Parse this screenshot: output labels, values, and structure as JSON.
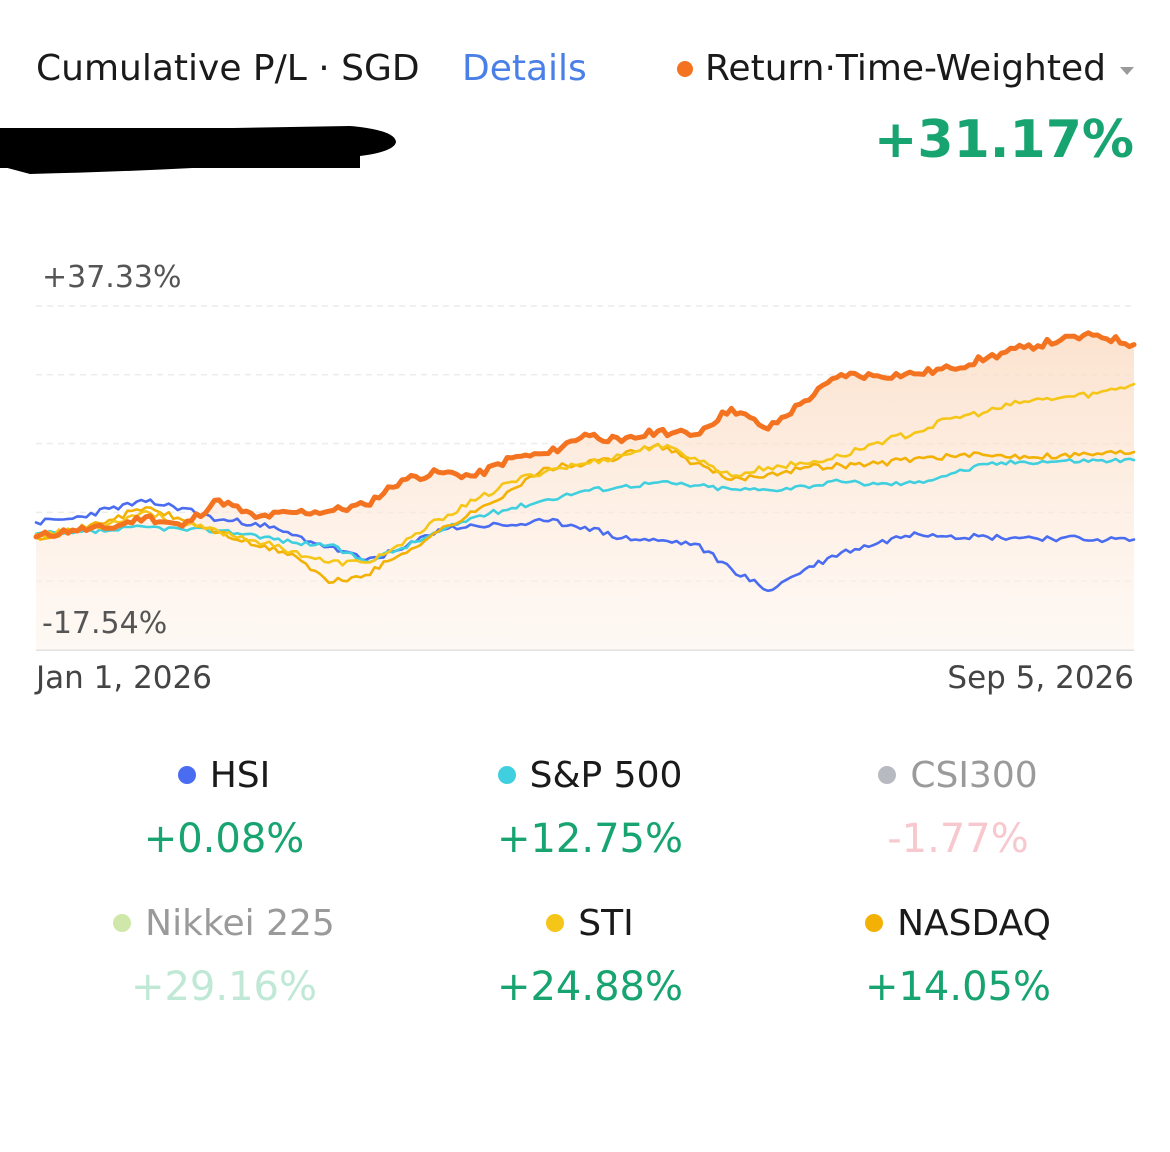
{
  "header": {
    "title": "Cumulative P/L · SGD",
    "details_label": "Details",
    "metric_label": "Return·Time-Weighted",
    "metric_color": "#f47320",
    "total_return": "+31.17%"
  },
  "chart_data": {
    "type": "line",
    "x_start_label": "Jan 1, 2026",
    "x_end_label": "Sep 5, 2026",
    "y_max_label": "+37.33%",
    "y_min_label": "-17.54%",
    "ylim": [
      -17.54,
      37.33
    ],
    "grid": true,
    "fill_under_portfolio": true,
    "series": [
      {
        "name": "Return·Time-Weighted",
        "color": "#f47320",
        "values": [
          0.5,
          1.6,
          1.9,
          3.7,
          2.2,
          6.4,
          3.6,
          4.4,
          4.6,
          5.6,
          9.6,
          10.8,
          10.2,
          13.1,
          13.8,
          16.9,
          15.7,
          17.4,
          16.8,
          21.0,
          17.7,
          22.2,
          26.4,
          26.2,
          26.5,
          27.4,
          29.1,
          30.7,
          31.9,
          32.7,
          31.17
        ]
      },
      {
        "name": "HSI",
        "color": "#4a6cf0",
        "values": [
          2.8,
          3.4,
          5.0,
          6.1,
          5.1,
          3.2,
          2.7,
          0.8,
          -1.1,
          -3.2,
          -1.5,
          1.7,
          2.3,
          2.4,
          3.0,
          2.1,
          0.3,
          -0.1,
          -0.6,
          -4.6,
          -8.1,
          -4.7,
          -2.0,
          -0.5,
          1.2,
          0.7,
          0.5,
          0.4,
          0.3,
          0.1,
          0.08
        ]
      },
      {
        "name": "S&P 500",
        "color": "#3fcfdf",
        "values": [
          1.0,
          1.1,
          1.5,
          2.1,
          1.7,
          1.5,
          0.8,
          -0.4,
          -0.8,
          -3.4,
          -1.3,
          1.3,
          3.7,
          5.1,
          6.5,
          7.9,
          8.5,
          9.2,
          8.7,
          8.1,
          8.0,
          8.6,
          9.3,
          8.9,
          9.1,
          10.6,
          12.1,
          12.5,
          12.6,
          12.7,
          12.75
        ]
      },
      {
        "name": "STI",
        "color": "#f5c518",
        "values": [
          0.9,
          1.4,
          2.6,
          4.6,
          2.5,
          1.4,
          -0.1,
          -1.8,
          -3.6,
          -3.6,
          -0.8,
          3.3,
          6.3,
          9.3,
          11.2,
          12.2,
          13.5,
          15.2,
          13.1,
          10.2,
          11.6,
          12.2,
          13.4,
          15.6,
          17.1,
          19.4,
          20.5,
          22.1,
          22.7,
          23.4,
          24.88
        ]
      },
      {
        "name": "NASDAQ",
        "color": "#f2b104",
        "values": [
          0.4,
          1.5,
          3.2,
          5.2,
          3.2,
          1.2,
          -0.9,
          -2.2,
          -6.8,
          -5.6,
          -2.2,
          1.4,
          4.5,
          8.1,
          11.5,
          12.1,
          13.4,
          15.3,
          12.2,
          9.6,
          10.5,
          11.6,
          11.9,
          12.2,
          13.0,
          13.4,
          13.5,
          13.4,
          13.5,
          13.8,
          14.05
        ]
      }
    ]
  },
  "benchmarks": [
    {
      "name": "HSI",
      "value": "+0.08%",
      "dot": "#4a6cf0",
      "name_color": "#1a1a1a",
      "value_color": "#17a470"
    },
    {
      "name": "S&P 500",
      "value": "+12.75%",
      "dot": "#3fcfdf",
      "name_color": "#1a1a1a",
      "value_color": "#17a470"
    },
    {
      "name": "CSI300",
      "value": "-1.77%",
      "dot": "#b7bac0",
      "name_color": "#9a9a9a",
      "value_color": "#f7c9cf"
    },
    {
      "name": "Nikkei 225",
      "value": "+29.16%",
      "dot": "#cfe8a9",
      "name_color": "#9a9a9a",
      "value_color": "#bfe8d6"
    },
    {
      "name": "STI",
      "value": "+24.88%",
      "dot": "#f5c518",
      "name_color": "#1a1a1a",
      "value_color": "#17a470"
    },
    {
      "name": "NASDAQ",
      "value": "+14.05%",
      "dot": "#f2b104",
      "name_color": "#1a1a1a",
      "value_color": "#17a470"
    }
  ]
}
